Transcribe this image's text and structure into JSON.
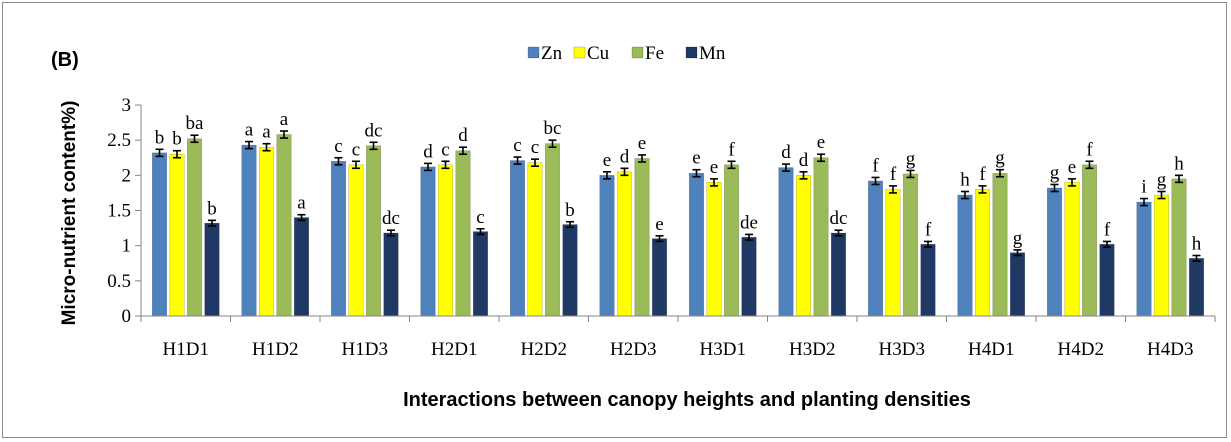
{
  "chart_data": {
    "type": "bar",
    "panel_label": "(B)",
    "xlabel": "Interactions between canopy heights and planting densities",
    "ylabel": "Micro-nutrient content%)",
    "ylim": [
      0,
      3
    ],
    "yticks": [
      "0",
      "0.5",
      "1",
      "1.5",
      "2",
      "2.5",
      "3"
    ],
    "legend_position": "top",
    "grid": false,
    "categories": [
      "H1D1",
      "H1D2",
      "H1D3",
      "H2D1",
      "H2D2",
      "H2D3",
      "H3D1",
      "H3D2",
      "H3D3",
      "H4D1",
      "H4D2",
      "H4D3"
    ],
    "series": [
      {
        "name": "Zn",
        "color": "#4f81bd",
        "values": [
          2.32,
          2.43,
          2.2,
          2.12,
          2.21,
          2.0,
          2.03,
          2.11,
          1.92,
          1.72,
          1.82,
          1.62
        ],
        "error": [
          0.05,
          0.05,
          0.05,
          0.05,
          0.05,
          0.05,
          0.05,
          0.05,
          0.05,
          0.05,
          0.05,
          0.05
        ],
        "labels": [
          "b",
          "a",
          "c",
          "d",
          "c",
          "e",
          "e",
          "d",
          "f",
          "h",
          "g",
          "i"
        ]
      },
      {
        "name": "Cu",
        "color": "#ffff00",
        "values": [
          2.3,
          2.4,
          2.15,
          2.15,
          2.18,
          2.05,
          1.9,
          2.0,
          1.8,
          1.8,
          1.9,
          1.72
        ],
        "error": [
          0.05,
          0.05,
          0.05,
          0.05,
          0.05,
          0.05,
          0.05,
          0.05,
          0.05,
          0.05,
          0.05,
          0.05
        ],
        "labels": [
          "b",
          "a",
          "c",
          "c",
          "c",
          "d",
          "e",
          "d",
          "f",
          "f",
          "e",
          "g"
        ]
      },
      {
        "name": "Fe",
        "color": "#9bbb59",
        "values": [
          2.52,
          2.58,
          2.42,
          2.35,
          2.45,
          2.24,
          2.15,
          2.25,
          2.02,
          2.03,
          2.15,
          1.95
        ],
        "error": [
          0.05,
          0.05,
          0.05,
          0.05,
          0.05,
          0.05,
          0.05,
          0.05,
          0.05,
          0.05,
          0.05,
          0.05
        ],
        "labels": [
          "ba",
          "a",
          "dc",
          "d",
          "bc",
          "e",
          "f",
          "e",
          "g",
          "g",
          "f",
          "h"
        ]
      },
      {
        "name": "Mn",
        "color": "#1f3864",
        "values": [
          1.32,
          1.4,
          1.18,
          1.2,
          1.3,
          1.1,
          1.12,
          1.18,
          1.02,
          0.9,
          1.02,
          0.82
        ],
        "error": [
          0.04,
          0.04,
          0.04,
          0.04,
          0.04,
          0.04,
          0.04,
          0.04,
          0.04,
          0.04,
          0.04,
          0.04
        ],
        "labels": [
          "b",
          "a",
          "dc",
          "c",
          "b",
          "e",
          "de",
          "dc",
          "f",
          "g",
          "f",
          "h"
        ]
      }
    ]
  }
}
